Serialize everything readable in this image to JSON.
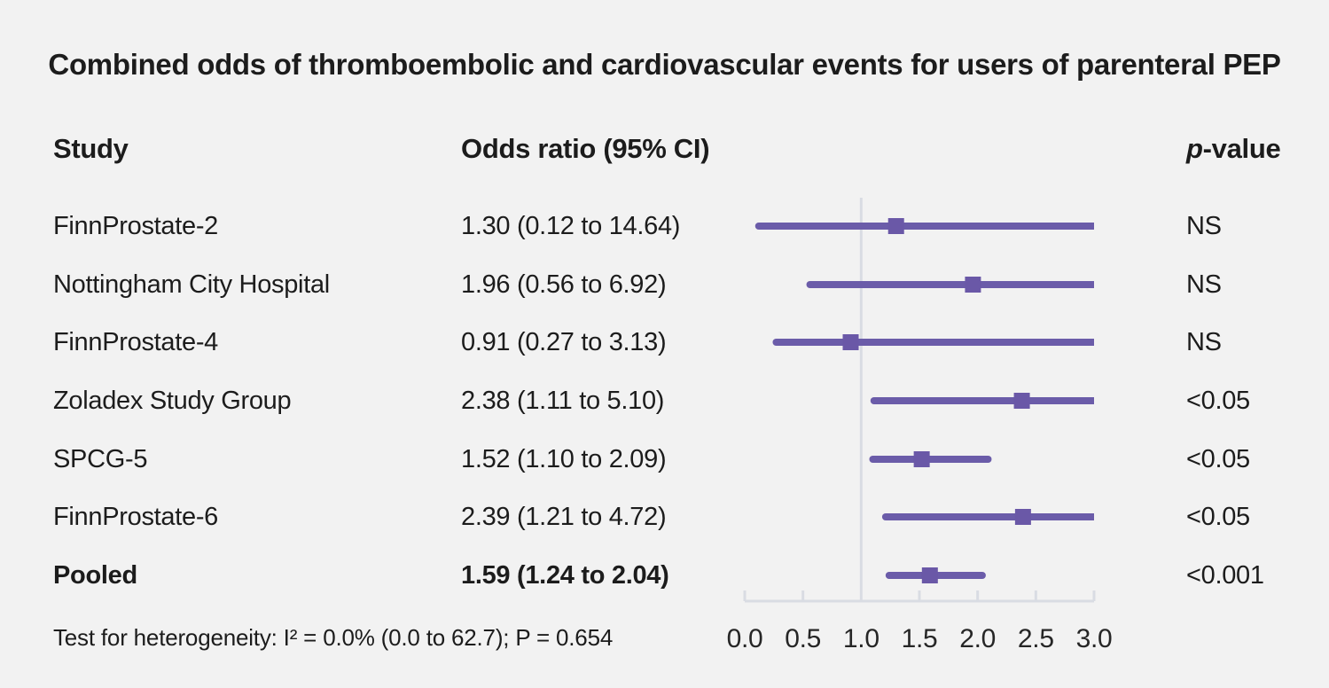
{
  "title": "Combined odds of thromboembolic and cardiovascular events for users of parenteral PEP",
  "columns": {
    "study": "Study",
    "odds_ratio": "Odds ratio (95% CI)",
    "p_italic": "p",
    "p_rest": "-value"
  },
  "footer": "Test for heterogeneity: I² = 0.0% (0.0 to 62.7); P = 0.654",
  "colors": {
    "background": "#f2f2f2",
    "text": "#1c1c1c",
    "ci_line": "#6b5ca9",
    "marker": "#6a58a7",
    "axis": "#d9dce3",
    "tick_label": "#262626"
  },
  "chart_data": {
    "type": "forest",
    "title": "Combined odds of thromboembolic and cardiovascular events for users of parenteral PEP",
    "xlabel": "Odds ratio",
    "xlim": [
      0.0,
      3.0
    ],
    "ref_line": 1.0,
    "tick_values": [
      0.0,
      0.5,
      1.0,
      1.5,
      2.0,
      2.5,
      3.0
    ],
    "tick_labels": [
      "0.0",
      "0.5",
      "1.0",
      "1.5",
      "2.0",
      "2.5",
      "3.0"
    ],
    "rows": [
      {
        "study": "FinnProstate-2",
        "or": 1.3,
        "lo": 0.12,
        "hi": 14.64,
        "or_label": "1.30 (0.12 to 14.64)",
        "p": "NS"
      },
      {
        "study": "Nottingham City Hospital",
        "or": 1.96,
        "lo": 0.56,
        "hi": 6.92,
        "or_label": "1.96 (0.56 to 6.92)",
        "p": "NS"
      },
      {
        "study": "FinnProstate-4",
        "or": 0.91,
        "lo": 0.27,
        "hi": 3.13,
        "or_label": "0.91 (0.27 to 3.13)",
        "p": "NS"
      },
      {
        "study": "Zoladex Study Group",
        "or": 2.38,
        "lo": 1.11,
        "hi": 5.1,
        "or_label": "2.38 (1.11 to 5.10)",
        "p": "<0.05"
      },
      {
        "study": "SPCG-5",
        "or": 1.52,
        "lo": 1.1,
        "hi": 2.09,
        "or_label": "1.52 (1.10 to 2.09)",
        "p": "<0.05"
      },
      {
        "study": "FinnProstate-6",
        "or": 2.39,
        "lo": 1.21,
        "hi": 4.72,
        "or_label": "2.39 (1.21 to 4.72)",
        "p": "<0.05"
      },
      {
        "study": "Pooled",
        "or": 1.59,
        "lo": 1.24,
        "hi": 2.04,
        "or_label": "1.59 (1.24 to 2.04)",
        "p": "<0.001",
        "pooled": true
      }
    ]
  }
}
